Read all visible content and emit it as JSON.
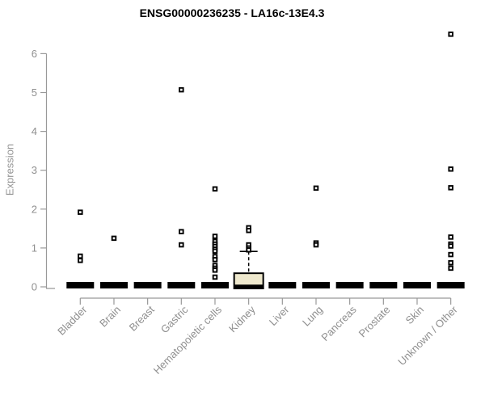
{
  "chart_data": {
    "type": "box",
    "title": "ENSG00000236235 - LA16c-13E4.3",
    "xlabel": "",
    "ylabel": "Expression",
    "ylim": [
      0,
      6.6
    ],
    "yticks": [
      0,
      1,
      2,
      3,
      4,
      5,
      6
    ],
    "grid": false,
    "legend": "none",
    "categories": [
      "Bladder",
      "Brain",
      "Breast",
      "Gastric",
      "Hematopoietic cells",
      "Kidney",
      "Liver",
      "Lung",
      "Pancreas",
      "Prostate",
      "Skin",
      "Unknown / Other"
    ],
    "series": [
      {
        "category": "Bladder",
        "q1": 0,
        "median": 0,
        "q3": 0,
        "whisker_low": 0,
        "whisker_high": 0,
        "outliers": [
          1.92,
          0.79,
          0.68
        ]
      },
      {
        "category": "Brain",
        "q1": 0,
        "median": 0,
        "q3": 0,
        "whisker_low": 0,
        "whisker_high": 0,
        "outliers": [
          1.25
        ]
      },
      {
        "category": "Breast",
        "q1": 0,
        "median": 0,
        "q3": 0,
        "whisker_low": 0,
        "whisker_high": 0,
        "outliers": []
      },
      {
        "category": "Gastric",
        "q1": 0,
        "median": 0,
        "q3": 0,
        "whisker_low": 0,
        "whisker_high": 0,
        "outliers": [
          5.07,
          1.42,
          1.08
        ]
      },
      {
        "category": "Hematopoietic cells",
        "q1": 0,
        "median": 0,
        "q3": 0,
        "whisker_low": 0,
        "whisker_high": 0,
        "outliers": [
          2.52,
          1.3,
          1.17,
          1.1,
          1.04,
          0.97,
          0.92,
          0.78,
          0.7,
          0.55,
          0.48,
          0.43,
          0.25
        ]
      },
      {
        "category": "Kidney",
        "q1": 0,
        "median": 0,
        "q3": 0.35,
        "whisker_low": 0,
        "whisker_high": 0.91,
        "outliers": [
          1.52,
          1.45,
          1.08,
          1.0,
          0.95
        ],
        "box_fill": "#EEE8CD"
      },
      {
        "category": "Liver",
        "q1": 0,
        "median": 0,
        "q3": 0,
        "whisker_low": 0,
        "whisker_high": 0,
        "outliers": []
      },
      {
        "category": "Lung",
        "q1": 0,
        "median": 0,
        "q3": 0,
        "whisker_low": 0,
        "whisker_high": 0,
        "outliers": [
          2.54,
          1.13,
          1.08
        ]
      },
      {
        "category": "Pancreas",
        "q1": 0,
        "median": 0,
        "q3": 0,
        "whisker_low": 0,
        "whisker_high": 0,
        "outliers": []
      },
      {
        "category": "Prostate",
        "q1": 0,
        "median": 0,
        "q3": 0,
        "whisker_low": 0,
        "whisker_high": 0,
        "outliers": []
      },
      {
        "category": "Skin",
        "q1": 0,
        "median": 0,
        "q3": 0,
        "whisker_low": 0,
        "whisker_high": 0,
        "outliers": []
      },
      {
        "category": "Unknown / Other",
        "q1": 0,
        "median": 0,
        "q3": 0,
        "whisker_low": 0,
        "whisker_high": 0,
        "outliers": [
          6.5,
          3.03,
          2.55,
          1.28,
          1.1,
          1.05,
          0.83,
          0.62,
          0.48
        ]
      }
    ],
    "colors": {
      "title_color": "#000000",
      "axis_text": "#8f8f8f",
      "axis_line": "#999999",
      "box_flat": "#000000",
      "box_border": "#000000",
      "kidney_box_fill": "#EEE8CD",
      "outlier_stroke": "#000000",
      "outlier_fill": "#ffffff",
      "background": "#ffffff"
    }
  }
}
